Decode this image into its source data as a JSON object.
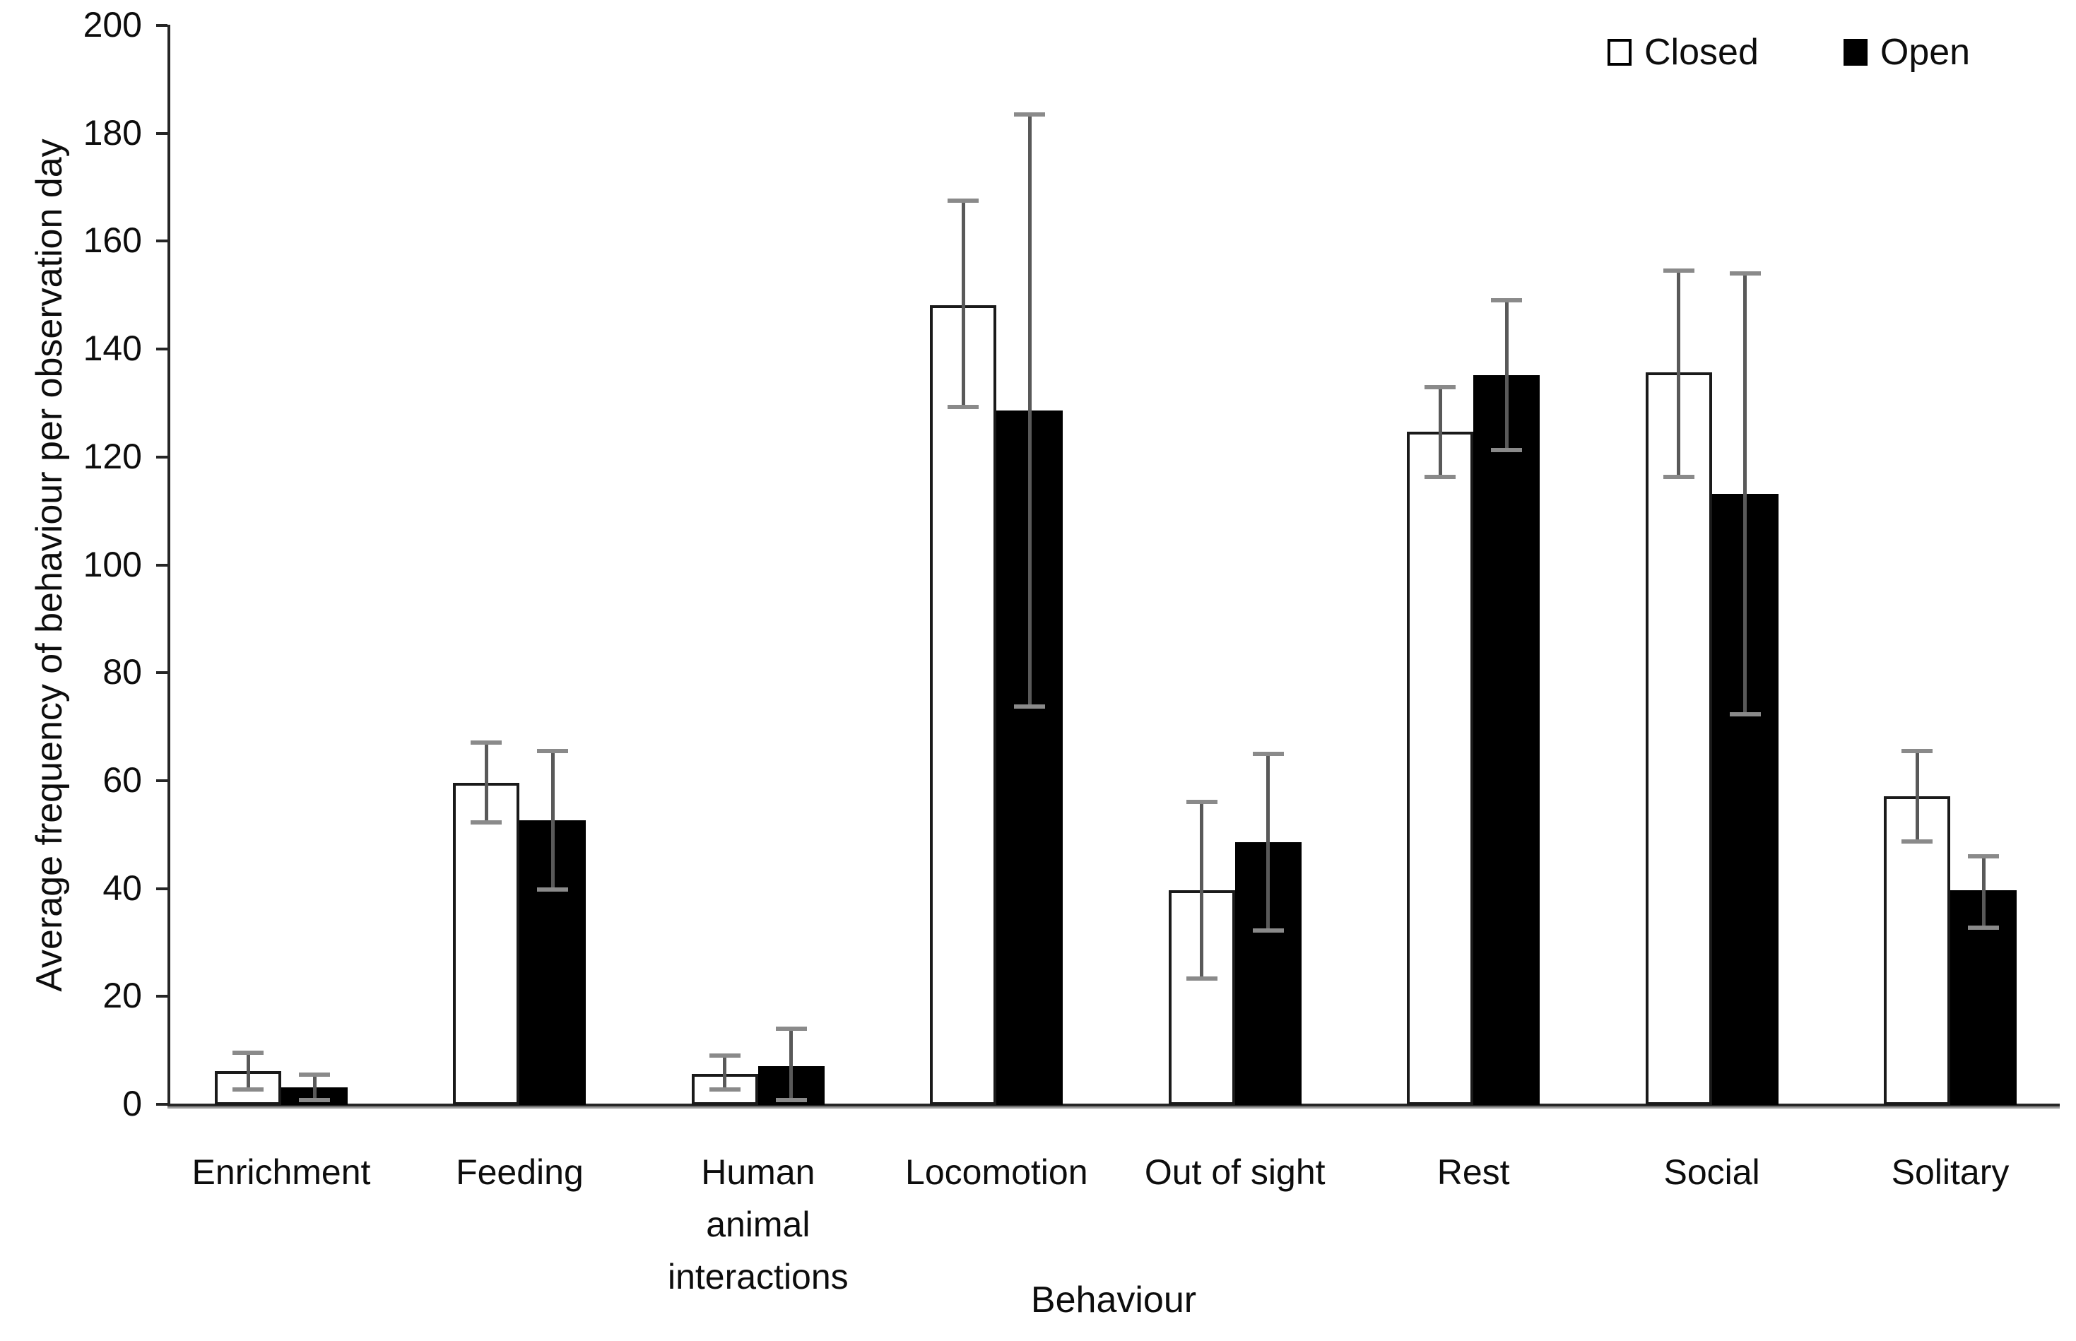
{
  "figure": {
    "background": "#ffffff",
    "axis_color": "#262626",
    "text_color": "#0d0d0d"
  },
  "legend": {
    "items": [
      {
        "label": "Closed",
        "fill": "#ffffff",
        "border": "#000000"
      },
      {
        "label": "Open",
        "fill": "#000000",
        "border": "#000000"
      }
    ]
  },
  "chart_data": {
    "type": "bar",
    "title": "",
    "xlabel": "Behaviour",
    "ylabel": "Average frequency of behaviour per observation day",
    "ylim": [
      0,
      200
    ],
    "ytick_step": 20,
    "ytick_labels": [
      "0",
      "20",
      "40",
      "60",
      "80",
      "100",
      "120",
      "140",
      "160",
      "180",
      "200"
    ],
    "grid": false,
    "legend_position": "top-right",
    "error_bars": true,
    "error_line_color": "#595959",
    "error_cap_color": "#8a8a8a",
    "categories": [
      "Enrichment",
      "Feeding",
      "Human animal interactions",
      "Locomotion",
      "Out of sight",
      "Rest",
      "Social",
      "Solitary"
    ],
    "category_label_lines": [
      [
        "Enrichment"
      ],
      [
        "Feeding"
      ],
      [
        "Human",
        "animal",
        "interactions"
      ],
      [
        "Locomotion"
      ],
      [
        "Out of sight"
      ],
      [
        "Rest"
      ],
      [
        "Social"
      ],
      [
        "Solitary"
      ]
    ],
    "series": [
      {
        "name": "Closed",
        "fill": "#ffffff",
        "border": "#1a1a1a",
        "values": [
          6,
          59.5,
          5.5,
          148,
          39.5,
          124.5,
          135.5,
          57
        ],
        "ci_low": [
          2.5,
          52,
          2.5,
          129,
          23,
          116,
          116,
          48.5
        ],
        "ci_high": [
          9.5,
          67,
          9,
          167.5,
          56,
          133,
          154.5,
          65.5
        ]
      },
      {
        "name": "Open",
        "fill": "#000000",
        "border": "#000000",
        "values": [
          3,
          52.5,
          7,
          128.5,
          48.5,
          135,
          113,
          39.5
        ],
        "ci_low": [
          0.5,
          39.5,
          0.5,
          73.5,
          32,
          121,
          72,
          32.5
        ],
        "ci_high": [
          5.5,
          65.5,
          14,
          183.5,
          65,
          149,
          154,
          46
        ]
      }
    ]
  }
}
